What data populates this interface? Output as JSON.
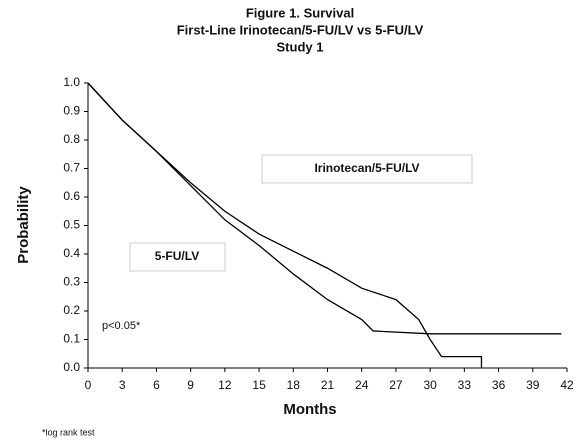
{
  "chart_data": {
    "type": "line",
    "title": "Figure 1. Survival",
    "subtitle": "First-Line Irinotecan/5-FU/LV vs 5-FU/LV",
    "subtitle2": "Study 1",
    "xlabel": "Months",
    "ylabel": "Probability",
    "annotations": [
      "Irinotecan/5-FU/LV",
      "5-FU/LV",
      "p<0.05*"
    ],
    "footnote": "*log rank test",
    "xlim": [
      0,
      42
    ],
    "xticks": [
      0,
      3,
      6,
      9,
      12,
      15,
      18,
      21,
      24,
      27,
      30,
      33,
      36,
      39,
      42
    ],
    "ylim": [
      0,
      1
    ],
    "yticks": [
      {
        "value": 0,
        "label": "0.0"
      },
      0.1,
      0.2,
      0.3,
      0.4,
      0.5,
      0.6,
      0.7,
      0.8,
      0.9,
      {
        "value": 1,
        "label": "1.0"
      }
    ],
    "series": [
      {
        "name": "Irinotecan/5-FU/LV",
        "color": "#000000",
        "x": [
          0,
          3,
          6,
          9,
          12,
          15,
          18,
          21,
          24,
          27,
          29,
          30,
          31,
          34.5,
          34.5
        ],
        "values": [
          1,
          0.87,
          0.76,
          0.65,
          0.55,
          0.47,
          0.41,
          0.35,
          0.28,
          0.24,
          0.17,
          0.1,
          0.04,
          0.04,
          0
        ]
      },
      {
        "name": "5-FU/LV",
        "color": "#000000",
        "x": [
          0,
          3,
          6,
          9,
          12,
          15,
          18,
          21,
          24,
          25,
          30,
          41.5
        ],
        "values": [
          1,
          0.87,
          0.76,
          0.64,
          0.52,
          0.43,
          0.33,
          0.24,
          0.17,
          0.13,
          0.12,
          0.12
        ]
      }
    ]
  }
}
